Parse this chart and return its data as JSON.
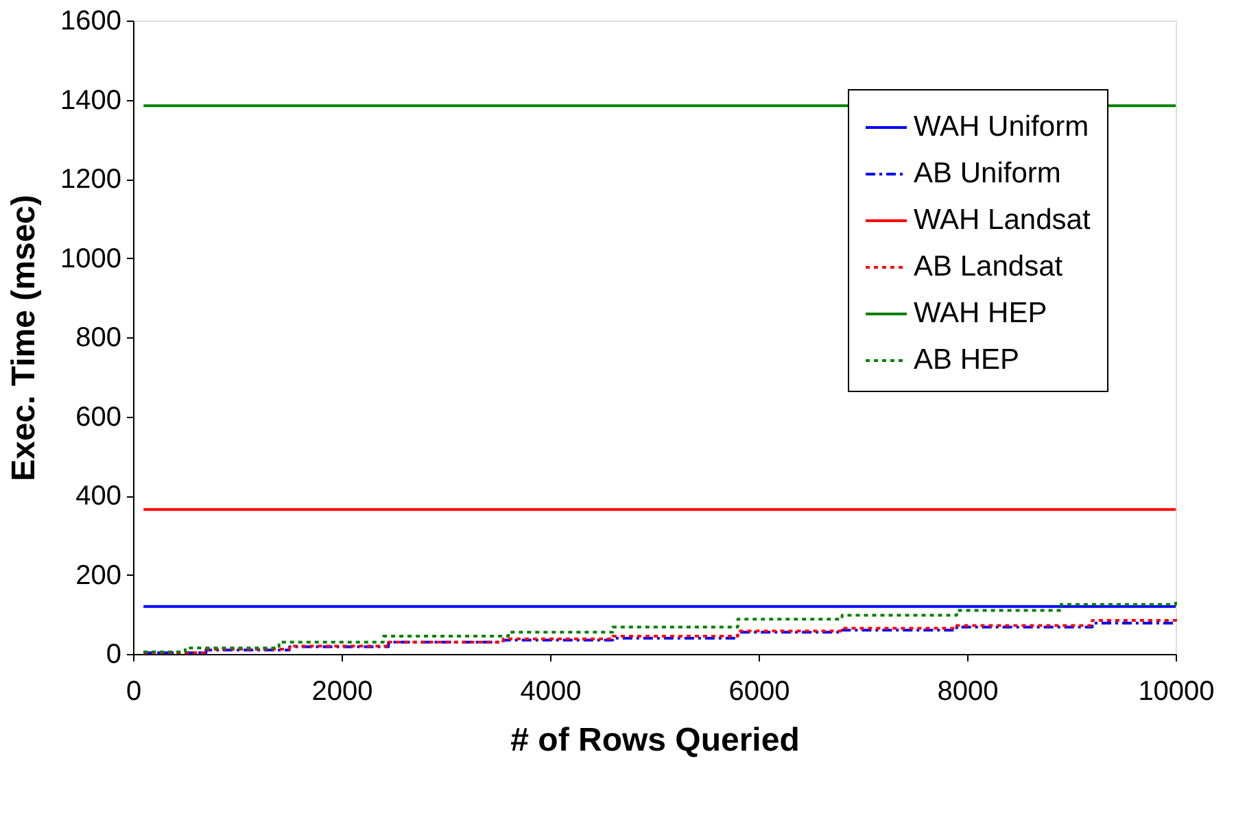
{
  "chart_data": {
    "type": "step",
    "xlabel": "# of Rows Queried",
    "ylabel": "Exec. Time (msec)",
    "xlim": [
      0,
      10000
    ],
    "xticks": [
      0,
      2000,
      4000,
      6000,
      8000,
      10000
    ],
    "ylim": [
      0,
      1600
    ],
    "yticks": [
      0,
      200,
      400,
      600,
      800,
      1000,
      1200,
      1400,
      1600
    ],
    "grid": false,
    "legend": "top right",
    "marker": "none",
    "series": [
      {
        "name": "WAH Uniform",
        "color": "#0000ff",
        "line_style": "solid",
        "x": [
          100,
          10000
        ],
        "values": [
          120,
          120
        ]
      },
      {
        "name": "AB Uniform",
        "color": "#0000ff",
        "line_style": "dashed",
        "x": [
          100,
          700,
          1500,
          2450,
          3550,
          4600,
          5800,
          6800,
          7900,
          9200,
          10000
        ],
        "values": [
          3,
          10,
          18,
          30,
          35,
          40,
          55,
          60,
          68,
          78,
          82
        ]
      },
      {
        "name": "WAH Landsat",
        "color": "#ff0000",
        "line_style": "solid",
        "x": [
          100,
          10000
        ],
        "values": [
          365,
          365
        ]
      },
      {
        "name": "AB Landsat",
        "color": "#ff0000",
        "line_style": "dotted",
        "x": [
          100,
          700,
          1500,
          2450,
          3550,
          4600,
          5800,
          6800,
          7900,
          9200,
          10000
        ],
        "values": [
          3,
          12,
          20,
          30,
          38,
          45,
          58,
          65,
          72,
          85,
          95
        ]
      },
      {
        "name": "WAH HEP",
        "color": "#008000",
        "line_style": "solid",
        "x": [
          100,
          10000
        ],
        "values": [
          1385,
          1385
        ]
      },
      {
        "name": "AB HEP",
        "color": "#008000",
        "line_style": "dotted",
        "x": [
          100,
          500,
          1400,
          2400,
          3600,
          4600,
          5800,
          6800,
          7900,
          8900,
          10000
        ],
        "values": [
          5,
          15,
          30,
          45,
          55,
          68,
          88,
          98,
          110,
          125,
          135
        ]
      }
    ]
  }
}
